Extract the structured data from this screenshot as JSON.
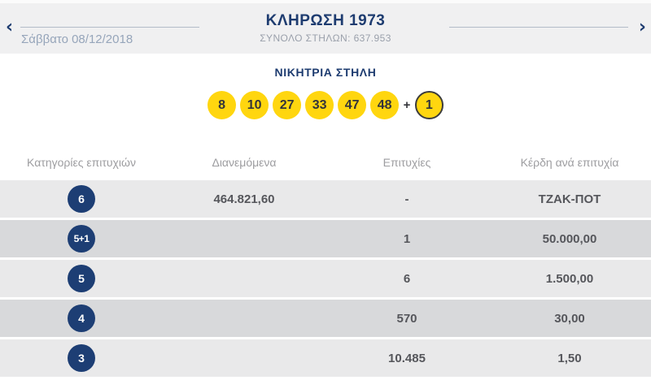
{
  "nav": {
    "title": "ΚΛΗΡΩΣΗ 1973",
    "subtitle": "ΣΥΝΟΛΟ ΣΤΗΛΩΝ: 637.953",
    "date": "Σάββατο 08/12/2018",
    "prev_icon": "‹",
    "next_icon": "›"
  },
  "winning_column": {
    "title": "ΝΙΚΗΤΡΙΑ ΣΤΗΛΗ",
    "numbers": [
      "8",
      "10",
      "27",
      "33",
      "47",
      "48"
    ],
    "plus": "+",
    "joker_number": "1"
  },
  "table": {
    "headers": [
      "Κατηγορίες επιτυχιών",
      "Διανεμόμενα",
      "Επιτυχίες",
      "Κέρδη ανά επιτυχία"
    ],
    "rows": [
      {
        "category": "6",
        "distributed": "464.821,60",
        "wins": "-",
        "prize": "ΤΖΑΚ-ΠΟΤ"
      },
      {
        "category": "5+1",
        "distributed": "",
        "wins": "1",
        "prize": "50.000,00"
      },
      {
        "category": "5",
        "distributed": "",
        "wins": "6",
        "prize": "1.500,00"
      },
      {
        "category": "4",
        "distributed": "",
        "wins": "570",
        "prize": "30,00"
      },
      {
        "category": "3",
        "distributed": "",
        "wins": "10.485",
        "prize": "1,50"
      }
    ]
  },
  "colors": {
    "navy": "#1e3c70",
    "badge_navy": "#1d3e74",
    "ball_yellow": "#ffd60f",
    "header_bg": "#f0f0f1",
    "row_light": "#e9e9ea",
    "row_dark": "#d8d9db",
    "value_text": "#55565b",
    "muted_text": "#9aa0ab",
    "date_text": "#96a5ba"
  }
}
